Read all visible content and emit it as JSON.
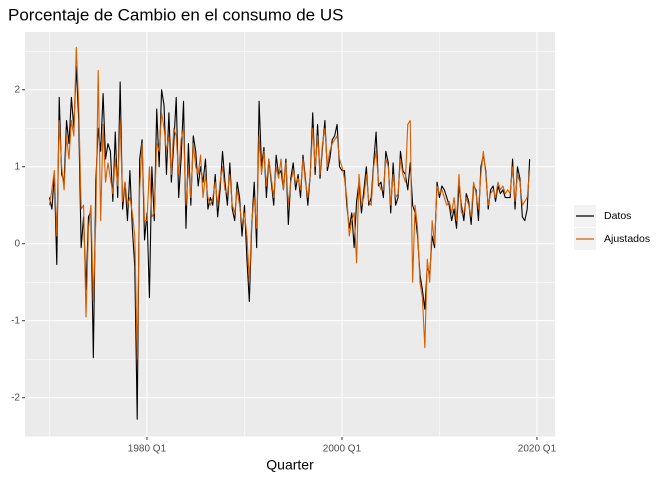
{
  "chart_data": {
    "type": "line",
    "title": "Porcentaje de Cambio en el consumo de US",
    "x_label": "Quarter",
    "x": [
      1970,
      1970.25,
      1970.5,
      1970.75,
      1971,
      1971.25,
      1971.5,
      1971.75,
      1972,
      1972.25,
      1972.5,
      1972.75,
      1973,
      1973.25,
      1973.5,
      1973.75,
      1974,
      1974.25,
      1974.5,
      1974.75,
      1975,
      1975.25,
      1975.5,
      1975.75,
      1976,
      1976.25,
      1976.5,
      1976.75,
      1977,
      1977.25,
      1977.5,
      1977.75,
      1978,
      1978.25,
      1978.5,
      1978.75,
      1979,
      1979.25,
      1979.5,
      1979.75,
      1980,
      1980.25,
      1980.5,
      1980.75,
      1981,
      1981.25,
      1981.5,
      1981.75,
      1982,
      1982.25,
      1982.5,
      1982.75,
      1983,
      1983.25,
      1983.5,
      1983.75,
      1984,
      1984.25,
      1984.5,
      1984.75,
      1985,
      1985.25,
      1985.5,
      1985.75,
      1986,
      1986.25,
      1986.5,
      1986.75,
      1987,
      1987.25,
      1987.5,
      1987.75,
      1988,
      1988.25,
      1988.5,
      1988.75,
      1989,
      1989.25,
      1989.5,
      1989.75,
      1990,
      1990.25,
      1990.5,
      1990.75,
      1991,
      1991.25,
      1991.5,
      1991.75,
      1992,
      1992.25,
      1992.5,
      1992.75,
      1993,
      1993.25,
      1993.5,
      1993.75,
      1994,
      1994.25,
      1994.5,
      1994.75,
      1995,
      1995.25,
      1995.5,
      1995.75,
      1996,
      1996.25,
      1996.5,
      1996.75,
      1997,
      1997.25,
      1997.5,
      1997.75,
      1998,
      1998.25,
      1998.5,
      1998.75,
      1999,
      1999.25,
      1999.5,
      1999.75,
      2000,
      2000.25,
      2000.5,
      2000.75,
      2001,
      2001.25,
      2001.5,
      2001.75,
      2002,
      2002.25,
      2002.5,
      2002.75,
      2003,
      2003.25,
      2003.5,
      2003.75,
      2004,
      2004.25,
      2004.5,
      2004.75,
      2005,
      2005.25,
      2005.5,
      2005.75,
      2006,
      2006.25,
      2006.5,
      2006.75,
      2007,
      2007.25,
      2007.5,
      2007.75,
      2008,
      2008.25,
      2008.5,
      2008.75,
      2009,
      2009.25,
      2009.5,
      2009.75,
      2010,
      2010.25,
      2010.5,
      2010.75,
      2011,
      2011.25,
      2011.5,
      2011.75,
      2012,
      2012.25,
      2012.5,
      2012.75,
      2013,
      2013.25,
      2013.5,
      2013.75,
      2014,
      2014.25,
      2014.5,
      2014.75,
      2015,
      2015.25,
      2015.5,
      2015.75,
      2016,
      2016.25,
      2016.5,
      2016.75,
      2017,
      2017.25,
      2017.5,
      2017.75,
      2018,
      2018.25,
      2018.5,
      2018.75,
      2019,
      2019.25
    ],
    "series": [
      {
        "name": "Datos",
        "color": "#000000",
        "values": [
          0.6,
          0.45,
          0.9,
          -0.27,
          1.9,
          0.9,
          0.8,
          1.6,
          1.3,
          1.9,
          1.5,
          2.3,
          1.6,
          -0.05,
          0.35,
          -0.6,
          0.35,
          0.42,
          -1.48,
          0.8,
          1.5,
          1.2,
          1.95,
          1.1,
          1.3,
          1.2,
          0.55,
          1.45,
          0.6,
          2.1,
          0.45,
          0.8,
          0.3,
          0.95,
          0.2,
          -0.3,
          -2.28,
          1.1,
          1.35,
          0.05,
          0.4,
          -0.7,
          1.0,
          0.3,
          1.75,
          1.0,
          2.0,
          1.8,
          0.9,
          1.7,
          0.8,
          1.3,
          1.9,
          0.6,
          1.1,
          1.85,
          0.2,
          1.3,
          0.5,
          1.4,
          1.2,
          0.75,
          1.0,
          0.8,
          1.1,
          0.45,
          0.6,
          0.5,
          0.9,
          0.35,
          0.7,
          1.2,
          0.8,
          0.5,
          1.05,
          0.45,
          0.3,
          0.8,
          0.6,
          0.1,
          0.5,
          -0.2,
          -0.75,
          0.25,
          0.8,
          -0.05,
          1.85,
          1.0,
          1.25,
          0.6,
          1.1,
          0.8,
          0.5,
          1.15,
          0.9,
          0.95,
          0.7,
          1.1,
          0.25,
          0.85,
          1.05,
          0.7,
          0.9,
          0.6,
          1.15,
          0.85,
          0.5,
          0.9,
          1.7,
          0.9,
          1.55,
          0.85,
          1.25,
          1.6,
          0.95,
          1.1,
          1.35,
          1.4,
          1.55,
          1.0,
          0.95,
          0.95,
          0.5,
          0.2,
          0.4,
          -0.05,
          0.55,
          0.8,
          0.4,
          0.7,
          1.0,
          0.5,
          0.6,
          1.05,
          1.45,
          0.75,
          0.8,
          0.6,
          1.2,
          1.05,
          0.4,
          1.05,
          0.5,
          0.6,
          1.2,
          0.95,
          0.9,
          0.7,
          1.05,
          0.5,
          0.4,
          0.1,
          -0.4,
          -0.6,
          -0.85,
          -0.3,
          -0.4,
          0.1,
          -0.05,
          0.8,
          0.6,
          0.75,
          0.7,
          0.6,
          0.5,
          0.3,
          0.45,
          0.2,
          0.75,
          0.5,
          0.3,
          0.65,
          0.55,
          0.25,
          0.75,
          0.7,
          0.3,
          1.0,
          1.15,
          0.95,
          0.45,
          0.7,
          0.75,
          0.55,
          0.75,
          0.65,
          0.7,
          0.6,
          0.6,
          0.6,
          1.1,
          0.45,
          1.0,
          0.85,
          0.35,
          0.3,
          0.45,
          1.1
        ]
      },
      {
        "name": "Ajustados",
        "color": "#D55E00",
        "values": [
          0.5,
          0.7,
          0.95,
          0.1,
          1.6,
          1.0,
          0.7,
          1.4,
          1.1,
          1.6,
          1.4,
          2.55,
          1.8,
          0.45,
          0.5,
          -0.95,
          0.2,
          0.5,
          -0.75,
          0.3,
          2.25,
          0.3,
          1.55,
          0.8,
          1.05,
          0.85,
          0.65,
          1.1,
          0.75,
          1.6,
          0.55,
          0.8,
          0.5,
          0.6,
          0.4,
          0.1,
          -1.5,
          0.7,
          1.3,
          0.3,
          0.3,
          1.0,
          0.35,
          0.4,
          1.3,
          1.2,
          1.7,
          1.5,
          1.2,
          1.4,
          0.9,
          1.5,
          1.4,
          0.9,
          1.35,
          1.5,
          0.5,
          1.0,
          0.6,
          1.3,
          1.0,
          0.9,
          1.15,
          0.6,
          0.9,
          0.6,
          0.5,
          0.6,
          0.8,
          0.5,
          0.8,
          1.0,
          0.7,
          0.65,
          0.9,
          0.5,
          0.4,
          0.7,
          0.5,
          0.25,
          0.4,
          0.1,
          -0.5,
          0.3,
          0.6,
          0.2,
          1.4,
          0.9,
          1.2,
          0.75,
          1.1,
          0.85,
          0.6,
          1.0,
          0.85,
          1.1,
          0.7,
          1.05,
          0.5,
          0.8,
          0.95,
          0.8,
          0.85,
          0.7,
          1.1,
          0.8,
          0.6,
          0.9,
          1.5,
          1.0,
          1.4,
          0.9,
          1.3,
          1.5,
          1.0,
          1.2,
          1.3,
          1.35,
          1.4,
          1.1,
          1.0,
          0.85,
          0.6,
          0.1,
          0.3,
          0.4,
          -0.25,
          0.9,
          0.5,
          0.6,
          0.9,
          0.55,
          0.5,
          1.0,
          1.2,
          0.8,
          0.7,
          0.7,
          1.1,
          1.0,
          0.5,
          0.9,
          0.6,
          0.65,
          1.1,
          0.9,
          0.8,
          1.55,
          1.6,
          -0.5,
          0.5,
          0.2,
          -0.5,
          -0.7,
          -1.35,
          -0.2,
          -0.5,
          0.3,
          0.0,
          0.75,
          0.65,
          0.7,
          0.6,
          0.5,
          0.55,
          0.4,
          0.6,
          0.3,
          0.9,
          0.4,
          0.4,
          0.6,
          0.5,
          0.35,
          0.8,
          0.65,
          0.45,
          0.9,
          1.2,
          0.9,
          0.5,
          0.65,
          0.7,
          0.6,
          0.8,
          0.7,
          0.75,
          0.65,
          0.7,
          0.65,
          1.0,
          0.55,
          0.9,
          0.8,
          0.5,
          0.55,
          0.6,
          0.95
        ]
      }
    ],
    "xlim": [
      1967.49,
      2021.85
    ],
    "xticks": [
      {
        "value": 1980,
        "label": "1980 Q1"
      },
      {
        "value": 2000,
        "label": "2000 Q1"
      },
      {
        "value": 2020,
        "label": "2020 Q1"
      }
    ],
    "ylim": [
      -2.51,
      2.75
    ],
    "yticks": [
      -2,
      -1,
      0,
      1,
      2
    ],
    "grid": true
  }
}
